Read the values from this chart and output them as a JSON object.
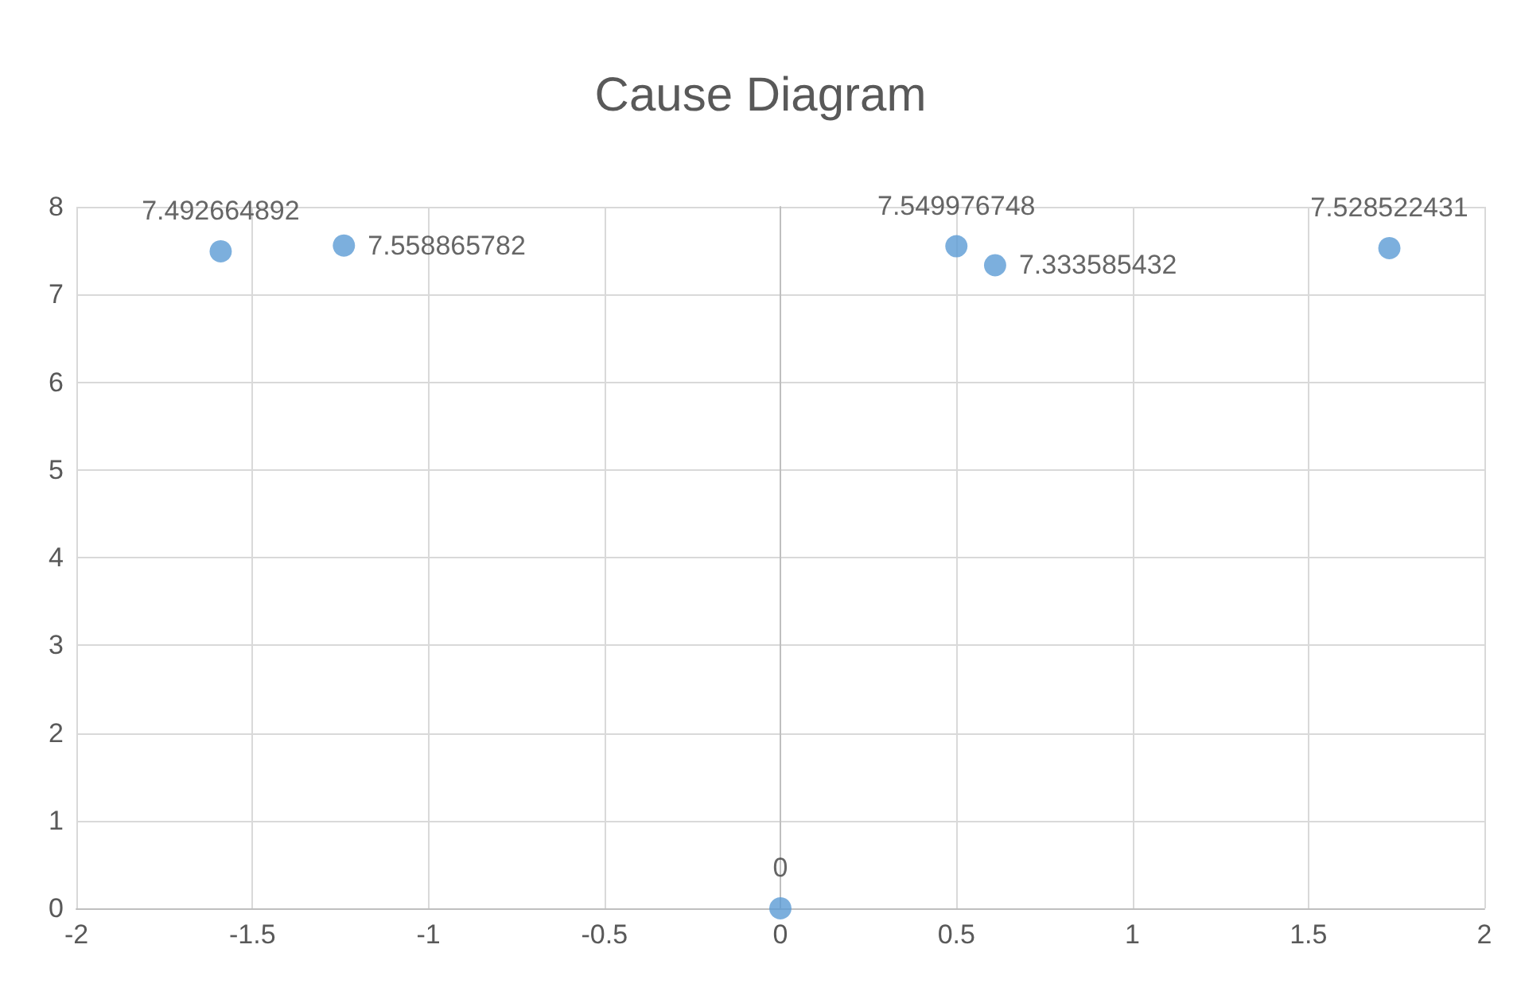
{
  "chart_data": {
    "type": "scatter",
    "title": "Cause Diagram",
    "x": [
      -1.59,
      -1.24,
      0.5,
      0.61,
      1.73,
      0
    ],
    "series": [
      {
        "color": "#5b9bd5",
        "values": [
          7.492664892,
          7.558865782,
          7.549976748,
          7.333585432,
          7.528522431,
          0
        ]
      }
    ],
    "xlim": [
      -2,
      2
    ],
    "xticks": [
      -2,
      -1.5,
      -1,
      -0.5,
      0,
      0.5,
      1,
      1.5,
      2
    ],
    "ylim": [
      0,
      8
    ],
    "yticks": [
      0,
      1,
      2,
      3,
      4,
      5,
      6,
      7,
      8
    ],
    "grid": true,
    "marker": "circle",
    "data_labels": true
  }
}
